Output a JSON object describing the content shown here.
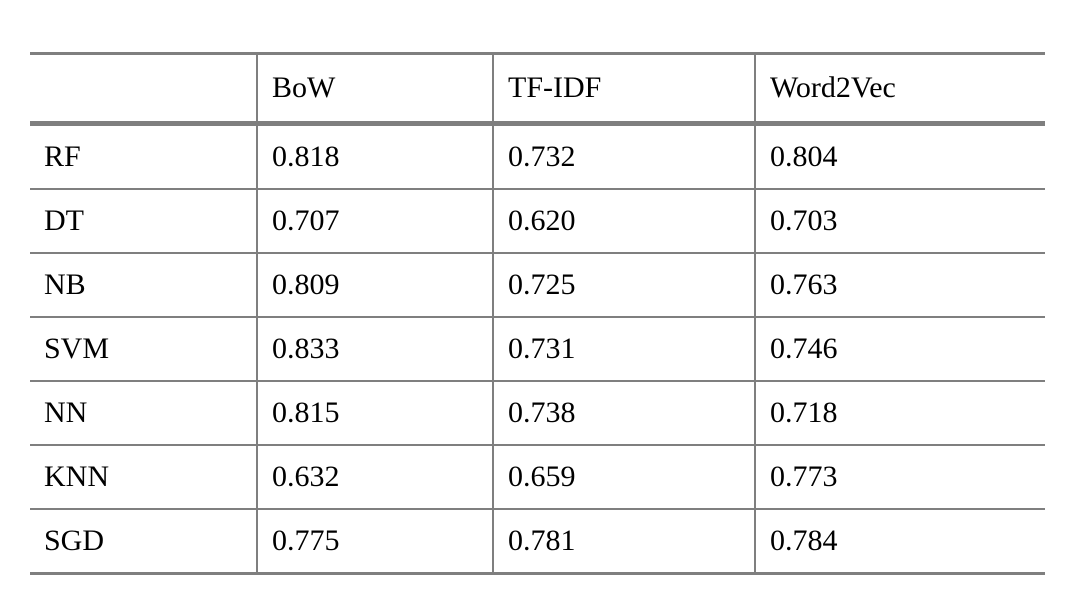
{
  "table": {
    "border_color": "#7f7f7f",
    "text_color": "#000000",
    "header": {
      "col0": "",
      "col1": "BoW",
      "col2": "TF-IDF",
      "col3": "Word2Vec"
    },
    "rows": [
      {
        "label": "RF",
        "values": [
          "0.818",
          "0.732",
          "0.804"
        ],
        "bold_value": "0.804",
        "bold_column": "Word2Vec"
      },
      {
        "label": "DT",
        "values": [
          "0.707",
          "0.620",
          "0.703"
        ],
        "bold_value": null,
        "bold_column": null
      },
      {
        "label": "NB",
        "values": [
          "0.809",
          "0.725",
          "0.763"
        ],
        "bold_value": null,
        "bold_column": null
      },
      {
        "label": "SVM",
        "values": [
          "0.833",
          "0.731",
          "0.746"
        ],
        "bold_value": "0.833",
        "bold_column": "BoW"
      },
      {
        "label": "NN",
        "values": [
          "0.815",
          "0.738",
          "0.718"
        ],
        "bold_value": null,
        "bold_column": null
      },
      {
        "label": "KNN",
        "values": [
          "0.632",
          "0.659",
          "0.773"
        ],
        "bold_value": null,
        "bold_column": null
      },
      {
        "label": "SGD",
        "values": [
          "0.775",
          "0.781",
          "0.784"
        ],
        "bold_value": "0.781",
        "bold_column": "TF-IDF"
      }
    ]
  },
  "chart_data": {
    "type": "table",
    "title": "",
    "categories": [
      "RF",
      "DT",
      "NB",
      "SVM",
      "NN",
      "KNN",
      "SGD"
    ],
    "series": [
      {
        "name": "BoW",
        "values": [
          0.818,
          0.707,
          0.809,
          0.833,
          0.815,
          0.632,
          0.775
        ]
      },
      {
        "name": "TF-IDF",
        "values": [
          0.732,
          0.62,
          0.725,
          0.731,
          0.738,
          0.659,
          0.781
        ]
      },
      {
        "name": "Word2Vec",
        "values": [
          0.804,
          0.703,
          0.763,
          0.746,
          0.718,
          0.773,
          0.784
        ]
      }
    ],
    "bold_cells": [
      {
        "row": "RF",
        "column": "Word2Vec",
        "value": 0.804
      },
      {
        "row": "SVM",
        "column": "BoW",
        "value": 0.833
      },
      {
        "row": "SGD",
        "column": "TF-IDF",
        "value": 0.781
      }
    ]
  }
}
